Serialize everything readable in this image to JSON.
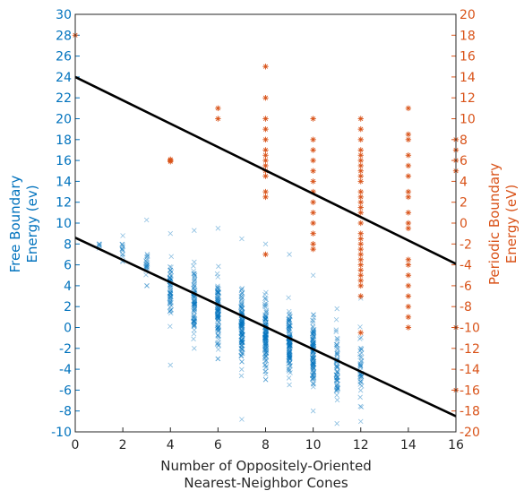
{
  "chart_data": {
    "type": "scatter",
    "x_ticks": [
      "0",
      "2",
      "4",
      "6",
      "8",
      "10",
      "12",
      "14",
      "16"
    ],
    "y_left_ticks": [
      "-10",
      "-8",
      "-6",
      "-4",
      "-2",
      "0",
      "2",
      "4",
      "6",
      "8",
      "10",
      "12",
      "14",
      "16",
      "18",
      "20",
      "22",
      "24",
      "26",
      "28",
      "30"
    ],
    "y_right_ticks": [
      "-20",
      "-18",
      "-16",
      "-14",
      "-12",
      "-10",
      "-8",
      "-6",
      "-4",
      "-2",
      "0",
      "2",
      "4",
      "6",
      "8",
      "10",
      "12",
      "14",
      "16",
      "18",
      "20"
    ],
    "xlabel": [
      "Number of Oppositely-Oriented",
      "Nearest-Neighbor Cones"
    ],
    "ylabel_left": [
      "Free Boundary",
      "Energy (ev)"
    ],
    "ylabel_right": [
      "Periodic Boundary",
      "Energy (eV)"
    ],
    "xlim": [
      0,
      16
    ],
    "ylim_left": [
      -10,
      30
    ],
    "ylim_right": [
      -20,
      20
    ],
    "grid": false,
    "colors": {
      "free": "#0072BD",
      "periodic": "#D95319",
      "fit": "#000000"
    },
    "series": [
      {
        "axis": "left",
        "marker": "x",
        "groups": [
          {
            "x": 1,
            "center": 7.8,
            "spread": 0.3,
            "min": 7.6,
            "max": 8.0,
            "n": 4
          },
          {
            "x": 2,
            "center": 7.3,
            "spread": 0.7,
            "min": 6.3,
            "max": 8.8,
            "n": 12
          },
          {
            "x": 3,
            "center": 6.0,
            "spread": 1.0,
            "min": 4.0,
            "max": 10.3,
            "n": 20
          },
          {
            "x": 4,
            "center": 3.5,
            "spread": 1.8,
            "min": -3.6,
            "max": 9.0,
            "n": 60
          },
          {
            "x": 5,
            "center": 2.5,
            "spread": 2.0,
            "min": -2.0,
            "max": 9.3,
            "n": 80
          },
          {
            "x": 6,
            "center": 1.5,
            "spread": 2.2,
            "min": -3.0,
            "max": 9.5,
            "n": 100
          },
          {
            "x": 7,
            "center": 0.0,
            "spread": 2.2,
            "min": -8.8,
            "max": 8.5,
            "n": 120
          },
          {
            "x": 8,
            "center": -1.0,
            "spread": 2.2,
            "min": -5.0,
            "max": 8.0,
            "n": 120
          },
          {
            "x": 9,
            "center": -1.5,
            "spread": 2.0,
            "min": -5.5,
            "max": 7.0,
            "n": 120
          },
          {
            "x": 10,
            "center": -2.5,
            "spread": 2.0,
            "min": -8.0,
            "max": 5.0,
            "n": 110
          },
          {
            "x": 11,
            "center": -3.5,
            "spread": 1.8,
            "min": -9.2,
            "max": 1.8,
            "n": 60
          },
          {
            "x": 12,
            "center": -4.0,
            "spread": 1.8,
            "min": -9.0,
            "max": 2.8,
            "n": 40
          }
        ]
      },
      {
        "axis": "right",
        "marker": "*",
        "points": [
          [
            0,
            18.0
          ],
          [
            4,
            6.0
          ],
          [
            4,
            5.9
          ],
          [
            4,
            6.1
          ],
          [
            6,
            10.0
          ],
          [
            6,
            11.0
          ],
          [
            8,
            15.0
          ],
          [
            8,
            12.0
          ],
          [
            8,
            10.0
          ],
          [
            8,
            9.0
          ],
          [
            8,
            8.0
          ],
          [
            8,
            7.0
          ],
          [
            8,
            6.5
          ],
          [
            8,
            6.0
          ],
          [
            8,
            5.5
          ],
          [
            8,
            5.0
          ],
          [
            8,
            4.5
          ],
          [
            8,
            3.0
          ],
          [
            8,
            2.5
          ],
          [
            8,
            -3.0
          ],
          [
            10,
            10.0
          ],
          [
            10,
            8.0
          ],
          [
            10,
            7.0
          ],
          [
            10,
            6.0
          ],
          [
            10,
            5.0
          ],
          [
            10,
            4.0
          ],
          [
            10,
            3.0
          ],
          [
            10,
            2.0
          ],
          [
            10,
            1.0
          ],
          [
            10,
            0.0
          ],
          [
            10,
            -1.0
          ],
          [
            10,
            -2.0
          ],
          [
            10,
            -2.5
          ],
          [
            12,
            10.0
          ],
          [
            12,
            9.0
          ],
          [
            12,
            8.0
          ],
          [
            12,
            7.0
          ],
          [
            12,
            6.5
          ],
          [
            12,
            6.0
          ],
          [
            12,
            5.5
          ],
          [
            12,
            5.0
          ],
          [
            12,
            4.5
          ],
          [
            12,
            4.0
          ],
          [
            12,
            3.0
          ],
          [
            12,
            2.5
          ],
          [
            12,
            2.0
          ],
          [
            12,
            1.5
          ],
          [
            12,
            1.0
          ],
          [
            12,
            0.0
          ],
          [
            12,
            -1.0
          ],
          [
            12,
            -1.5
          ],
          [
            12,
            -2.0
          ],
          [
            12,
            -2.5
          ],
          [
            12,
            -3.0
          ],
          [
            12,
            -3.5
          ],
          [
            12,
            -4.0
          ],
          [
            12,
            -4.5
          ],
          [
            12,
            -5.0
          ],
          [
            12,
            -5.5
          ],
          [
            12,
            -6.0
          ],
          [
            12,
            -7.0
          ],
          [
            12,
            -10.5
          ],
          [
            14,
            11.0
          ],
          [
            14,
            8.5
          ],
          [
            14,
            8.0
          ],
          [
            14,
            6.5
          ],
          [
            14,
            5.5
          ],
          [
            14,
            4.5
          ],
          [
            14,
            3.0
          ],
          [
            14,
            2.5
          ],
          [
            14,
            1.0
          ],
          [
            14,
            0.0
          ],
          [
            14,
            -0.5
          ],
          [
            14,
            -3.5
          ],
          [
            14,
            -4.0
          ],
          [
            14,
            -5.0
          ],
          [
            14,
            -6.0
          ],
          [
            14,
            -7.0
          ],
          [
            14,
            -8.0
          ],
          [
            14,
            -9.0
          ],
          [
            14,
            -10.0
          ],
          [
            16,
            8.0
          ],
          [
            16,
            7.0
          ],
          [
            16,
            6.0
          ],
          [
            16,
            5.0
          ],
          [
            16,
            -10.0
          ],
          [
            16,
            -16.0
          ]
        ]
      }
    ],
    "fit_lines": [
      {
        "axis": "left",
        "x": [
          0,
          16
        ],
        "y": [
          8.6,
          -8.5
        ]
      },
      {
        "axis": "right",
        "x": [
          0,
          16
        ],
        "y": [
          14.0,
          -3.9
        ]
      }
    ]
  }
}
